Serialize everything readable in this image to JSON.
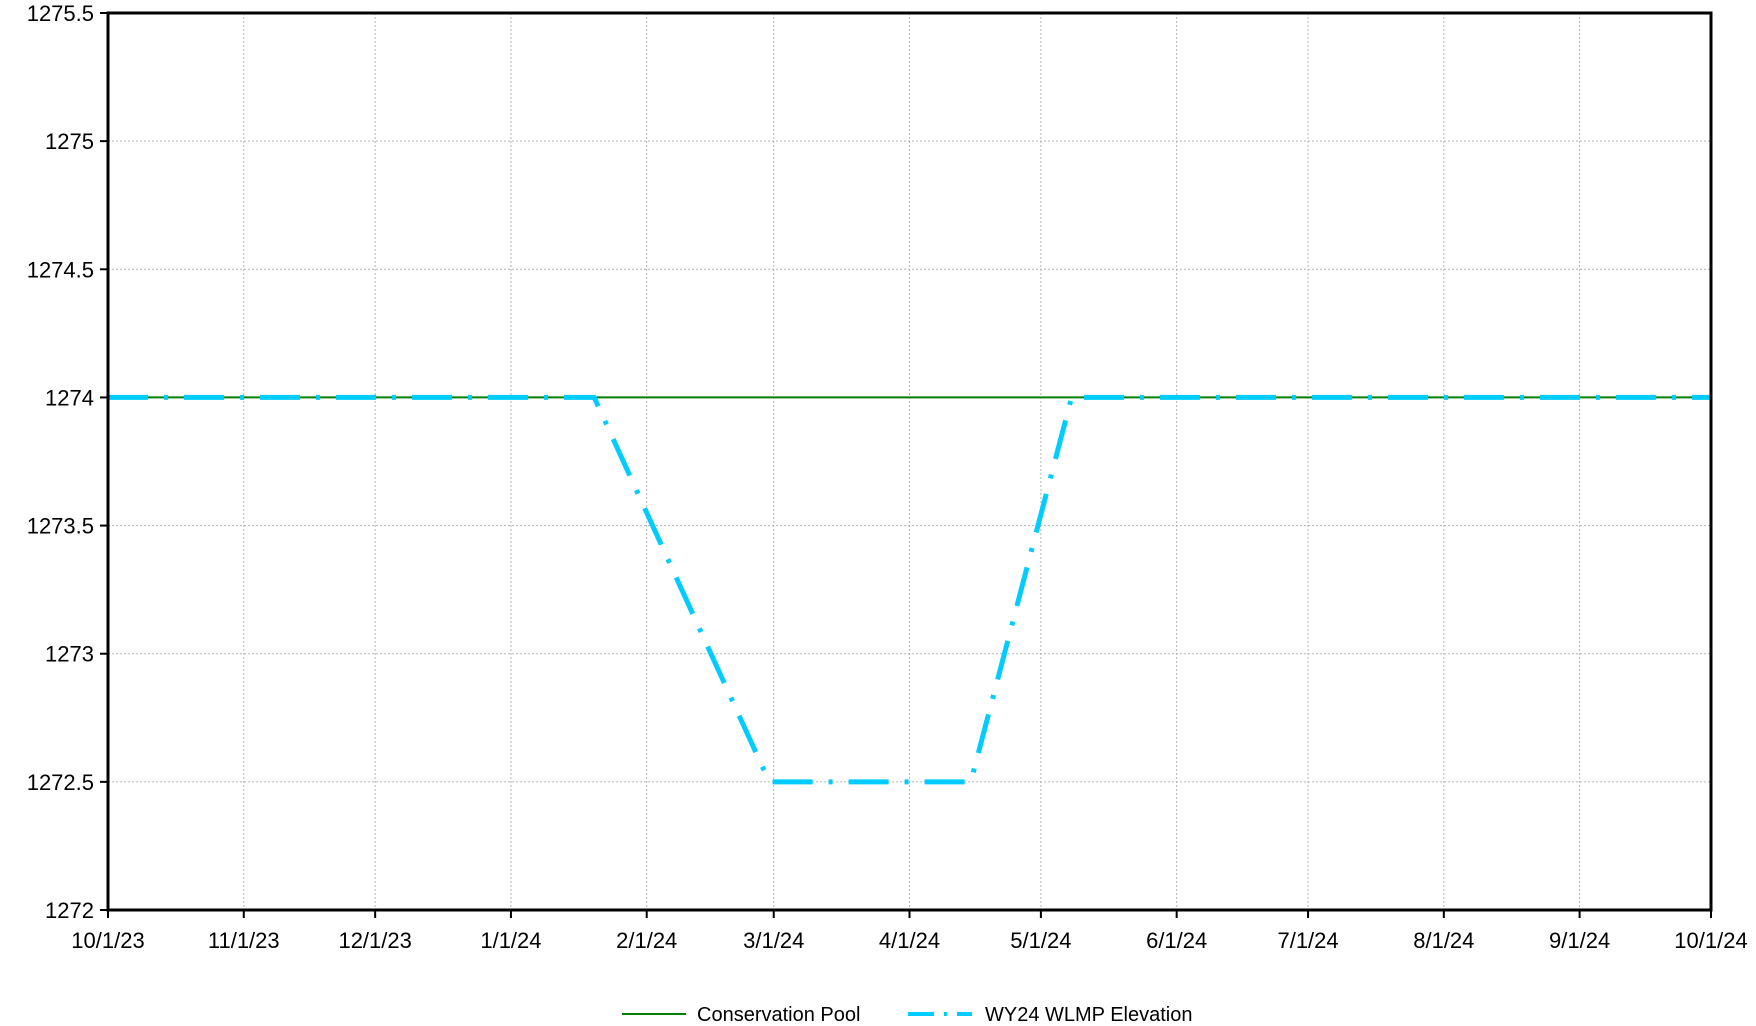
{
  "chart_data": {
    "type": "line",
    "title": "",
    "xlabel": "",
    "ylabel": "",
    "x_ticks": [
      "10/1/23",
      "11/1/23",
      "12/1/23",
      "1/1/24",
      "2/1/24",
      "3/1/24",
      "4/1/24",
      "5/1/24",
      "6/1/24",
      "7/1/24",
      "8/1/24",
      "9/1/24",
      "10/1/24"
    ],
    "xlim": [
      "10/1/23",
      "10/1/24"
    ],
    "y_ticks": [
      "1272",
      "1272.5",
      "1273",
      "1273.5",
      "1274",
      "1274.5",
      "1275",
      "1275.5"
    ],
    "ylim": [
      1272,
      1275.5
    ],
    "grid": true,
    "legend_position": "bottom-center",
    "series": [
      {
        "name": "Conservation Pool",
        "color": "#008000",
        "style": "solid",
        "points": [
          {
            "x": "10/1/23",
            "y": 1274
          },
          {
            "x": "10/1/24",
            "y": 1274
          }
        ]
      },
      {
        "name": "WY24 WLMP Elevation",
        "color": "#00CCFF",
        "style": "dash-dot",
        "points": [
          {
            "x": "10/1/23",
            "y": 1274
          },
          {
            "x": "1/20/24",
            "y": 1274
          },
          {
            "x": "2/29/24",
            "y": 1272.5
          },
          {
            "x": "4/15/24",
            "y": 1272.5
          },
          {
            "x": "5/8/24",
            "y": 1274
          },
          {
            "x": "10/1/24",
            "y": 1274
          }
        ]
      }
    ]
  }
}
